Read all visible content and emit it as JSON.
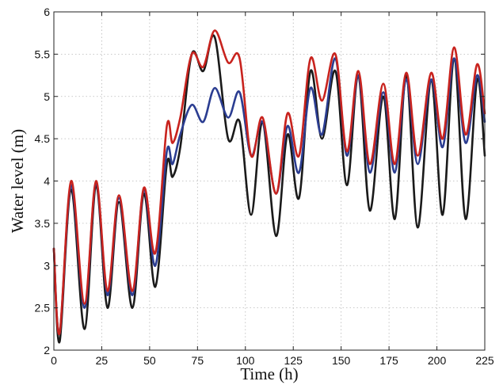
{
  "chart_data": {
    "type": "line",
    "xlabel": "Time (h)",
    "ylabel": "Water level (m)",
    "xlim": [
      0,
      225
    ],
    "ylim": [
      2,
      6
    ],
    "xticks": [
      "0",
      "25",
      "50",
      "75",
      "100",
      "125",
      "150",
      "175",
      "200",
      "225"
    ],
    "yticks": [
      "2",
      "2.5",
      "3",
      "3.5",
      "4",
      "4.5",
      "5",
      "5.5",
      "6"
    ],
    "grid": true,
    "series": [
      {
        "color": "#1a1a1a",
        "x": [
          0,
          3,
          9,
          16,
          22,
          28,
          34,
          41,
          47,
          53,
          59,
          62,
          66,
          72,
          78,
          84,
          91,
          97,
          103,
          109,
          116,
          122,
          128,
          134,
          140,
          147,
          153,
          159,
          165,
          172,
          178,
          184,
          190,
          197,
          203,
          209,
          215,
          221,
          225
        ],
        "y": [
          3.2,
          2.1,
          3.9,
          2.25,
          3.95,
          2.5,
          3.75,
          2.5,
          3.85,
          2.75,
          4.2,
          4.05,
          4.4,
          5.5,
          5.3,
          5.7,
          4.5,
          4.7,
          3.6,
          4.7,
          3.35,
          4.55,
          3.8,
          5.3,
          4.5,
          5.3,
          3.95,
          5.25,
          3.65,
          5.0,
          3.55,
          5.25,
          3.45,
          5.2,
          3.6,
          5.45,
          3.55,
          5.2,
          4.3
        ]
      },
      {
        "color": "#2b3d91",
        "x": [
          0,
          3,
          9,
          16,
          22,
          28,
          34,
          41,
          47,
          53,
          59,
          62,
          66,
          72,
          78,
          84,
          91,
          97,
          103,
          109,
          116,
          122,
          128,
          134,
          140,
          147,
          153,
          159,
          165,
          172,
          178,
          184,
          190,
          197,
          203,
          209,
          215,
          221,
          225
        ],
        "y": [
          3.2,
          2.2,
          3.95,
          2.5,
          3.98,
          2.65,
          3.8,
          2.65,
          3.9,
          3.0,
          4.35,
          4.2,
          4.55,
          4.9,
          4.7,
          5.1,
          4.75,
          5.05,
          4.3,
          4.7,
          3.85,
          4.65,
          4.1,
          5.1,
          4.55,
          5.45,
          4.3,
          5.25,
          4.1,
          5.05,
          4.1,
          5.2,
          4.2,
          5.2,
          4.4,
          5.45,
          4.45,
          5.25,
          4.7
        ]
      },
      {
        "color": "#c8231e",
        "x": [
          0,
          3,
          9,
          16,
          22,
          28,
          34,
          41,
          47,
          53,
          59,
          62,
          66,
          72,
          78,
          84,
          91,
          97,
          103,
          109,
          116,
          122,
          128,
          134,
          140,
          147,
          153,
          159,
          165,
          172,
          178,
          184,
          190,
          197,
          203,
          209,
          215,
          221,
          225
        ],
        "y": [
          3.2,
          2.2,
          4.0,
          2.55,
          4.0,
          2.7,
          3.83,
          2.7,
          3.92,
          3.15,
          4.65,
          4.45,
          4.75,
          5.5,
          5.35,
          5.78,
          5.4,
          5.45,
          4.3,
          4.75,
          3.85,
          4.8,
          4.3,
          5.45,
          4.95,
          5.5,
          4.35,
          5.3,
          4.2,
          5.15,
          4.2,
          5.28,
          4.3,
          5.28,
          4.5,
          5.58,
          4.55,
          5.38,
          4.8
        ]
      }
    ]
  }
}
